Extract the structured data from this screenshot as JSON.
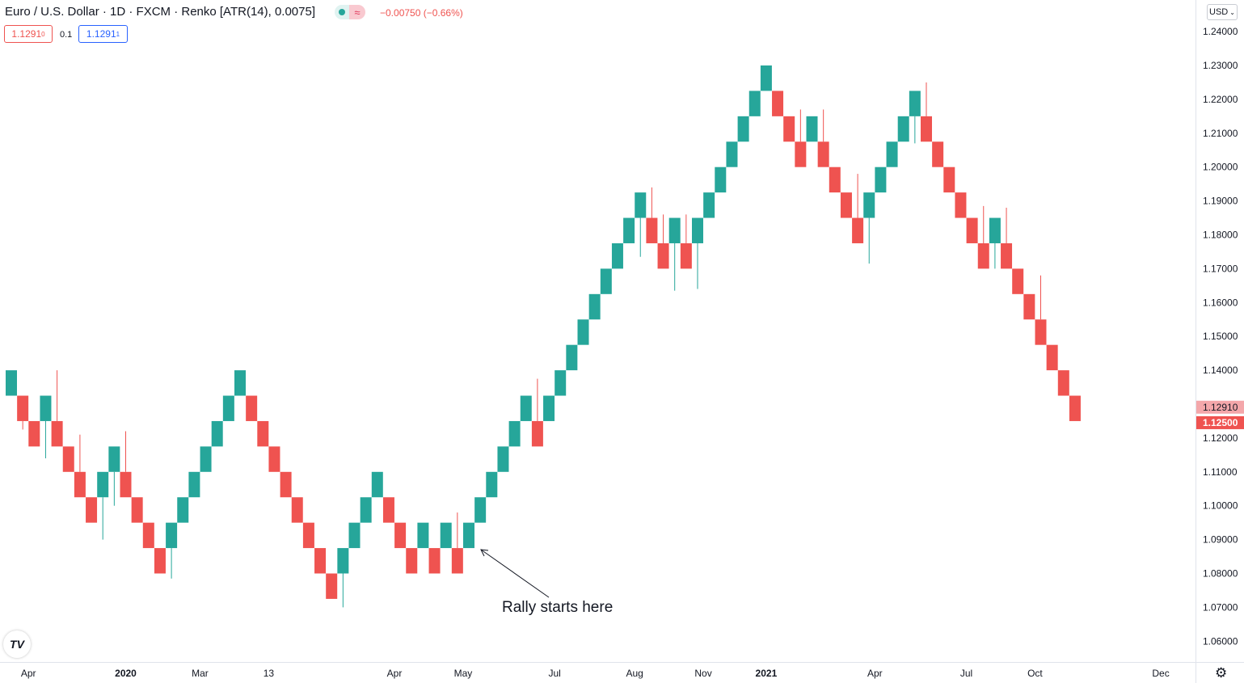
{
  "legend": {
    "title": "Euro / U.S. Dollar · 1D · FXCM · Renko [ATR(14), 0.0075]",
    "change": "−0.00750 (−0.66%)",
    "sell_price": "1.1291",
    "sell_price_sup": "0",
    "spread": "0.1",
    "buy_price": "1.1291",
    "buy_price_sup": "1"
  },
  "currency_label": "USD",
  "logo_text": "TV",
  "annotation": "Rally starts here",
  "colors": {
    "up": "#26a69a",
    "down": "#ef5350",
    "axis_text": "#131722"
  },
  "chart_data": {
    "type": "renko",
    "symbol": "EUR/USD",
    "timeframe": "1D",
    "brick_size": 0.0075,
    "price_axis": {
      "ticks": [
        "1.24000",
        "1.23000",
        "1.22000",
        "1.21000",
        "1.20000",
        "1.19000",
        "1.18000",
        "1.17000",
        "1.16000",
        "1.15000",
        "1.14000",
        "1.12000",
        "1.11000",
        "1.10000",
        "1.09000",
        "1.08000",
        "1.07000",
        "1.06000"
      ]
    },
    "price_labels": [
      {
        "text": "1.12910",
        "value": 1.1291,
        "color": "#f4a7aa"
      },
      {
        "text": "1.12500",
        "value": 1.125,
        "color": "#ef5350"
      }
    ],
    "time_axis": {
      "labels": [
        {
          "text": "Apr",
          "brick": 1.5
        },
        {
          "text": "2020",
          "brick": 10,
          "bold": true
        },
        {
          "text": "Mar",
          "brick": 16.5
        },
        {
          "text": "13",
          "brick": 22.5
        },
        {
          "text": "Apr",
          "brick": 33.5
        },
        {
          "text": "May",
          "brick": 39.5
        },
        {
          "text": "Jul",
          "brick": 47.5
        },
        {
          "text": "Aug",
          "brick": 54.5
        },
        {
          "text": "Nov",
          "brick": 60.5
        },
        {
          "text": "2021",
          "brick": 66,
          "bold": true
        },
        {
          "text": "Apr",
          "brick": 75.5
        },
        {
          "text": "Jul",
          "brick": 83.5
        },
        {
          "text": "Oct",
          "brick": 89.5
        },
        {
          "text": "Dec",
          "brick": 100.5
        }
      ]
    },
    "bricks": [
      {
        "dir": "up",
        "low": 1.1325,
        "high": 1.14
      },
      {
        "dir": "down",
        "low": 1.125,
        "high": 1.1325,
        "wick": 1.1225
      },
      {
        "dir": "down",
        "low": 1.1175,
        "high": 1.125
      },
      {
        "dir": "up",
        "low": 1.125,
        "high": 1.1325,
        "wick": 1.114
      },
      {
        "dir": "down",
        "low": 1.1175,
        "high": 1.125,
        "wick": 1.14
      },
      {
        "dir": "down",
        "low": 1.11,
        "high": 1.1175
      },
      {
        "dir": "down",
        "low": 1.1025,
        "high": 1.11,
        "wick": 1.121
      },
      {
        "dir": "down",
        "low": 1.095,
        "high": 1.1025
      },
      {
        "dir": "up",
        "low": 1.1025,
        "high": 1.11,
        "wick": 1.09
      },
      {
        "dir": "up",
        "low": 1.11,
        "high": 1.1175,
        "wick": 1.1
      },
      {
        "dir": "down",
        "low": 1.1025,
        "high": 1.11,
        "wick": 1.122
      },
      {
        "dir": "down",
        "low": 1.095,
        "high": 1.1025
      },
      {
        "dir": "down",
        "low": 1.0875,
        "high": 1.095
      },
      {
        "dir": "down",
        "low": 1.08,
        "high": 1.0875
      },
      {
        "dir": "up",
        "low": 1.0875,
        "high": 1.095,
        "wick": 1.0785
      },
      {
        "dir": "up",
        "low": 1.095,
        "high": 1.1025
      },
      {
        "dir": "up",
        "low": 1.1025,
        "high": 1.11
      },
      {
        "dir": "up",
        "low": 1.11,
        "high": 1.1175
      },
      {
        "dir": "up",
        "low": 1.1175,
        "high": 1.125
      },
      {
        "dir": "up",
        "low": 1.125,
        "high": 1.1325
      },
      {
        "dir": "up",
        "low": 1.1325,
        "high": 1.14
      },
      {
        "dir": "down",
        "low": 1.125,
        "high": 1.1325
      },
      {
        "dir": "down",
        "low": 1.1175,
        "high": 1.125
      },
      {
        "dir": "down",
        "low": 1.11,
        "high": 1.1175
      },
      {
        "dir": "down",
        "low": 1.1025,
        "high": 1.11
      },
      {
        "dir": "down",
        "low": 1.095,
        "high": 1.1025
      },
      {
        "dir": "down",
        "low": 1.0875,
        "high": 1.095
      },
      {
        "dir": "down",
        "low": 1.08,
        "high": 1.0875
      },
      {
        "dir": "down",
        "low": 1.0725,
        "high": 1.08
      },
      {
        "dir": "up",
        "low": 1.08,
        "high": 1.0875,
        "wick": 1.07
      },
      {
        "dir": "up",
        "low": 1.0875,
        "high": 1.095
      },
      {
        "dir": "up",
        "low": 1.095,
        "high": 1.1025
      },
      {
        "dir": "up",
        "low": 1.1025,
        "high": 1.11
      },
      {
        "dir": "down",
        "low": 1.095,
        "high": 1.1025
      },
      {
        "dir": "down",
        "low": 1.0875,
        "high": 1.095
      },
      {
        "dir": "down",
        "low": 1.08,
        "high": 1.0875
      },
      {
        "dir": "up",
        "low": 1.0875,
        "high": 1.095
      },
      {
        "dir": "down",
        "low": 1.08,
        "high": 1.0875
      },
      {
        "dir": "up",
        "low": 1.0875,
        "high": 1.095
      },
      {
        "dir": "down",
        "low": 1.08,
        "high": 1.0875,
        "wick": 1.098
      },
      {
        "dir": "up",
        "low": 1.0875,
        "high": 1.095
      },
      {
        "dir": "up",
        "low": 1.095,
        "high": 1.1025
      },
      {
        "dir": "up",
        "low": 1.1025,
        "high": 1.11
      },
      {
        "dir": "up",
        "low": 1.11,
        "high": 1.1175
      },
      {
        "dir": "up",
        "low": 1.1175,
        "high": 1.125
      },
      {
        "dir": "up",
        "low": 1.125,
        "high": 1.1325
      },
      {
        "dir": "down",
        "low": 1.1175,
        "high": 1.125,
        "wick": 1.1375
      },
      {
        "dir": "up",
        "low": 1.125,
        "high": 1.1325
      },
      {
        "dir": "up",
        "low": 1.1325,
        "high": 1.14
      },
      {
        "dir": "up",
        "low": 1.14,
        "high": 1.1475
      },
      {
        "dir": "up",
        "low": 1.1475,
        "high": 1.155
      },
      {
        "dir": "up",
        "low": 1.155,
        "high": 1.1625
      },
      {
        "dir": "up",
        "low": 1.1625,
        "high": 1.17
      },
      {
        "dir": "up",
        "low": 1.17,
        "high": 1.1775
      },
      {
        "dir": "up",
        "low": 1.1775,
        "high": 1.185
      },
      {
        "dir": "up",
        "low": 1.185,
        "high": 1.1925,
        "wick": 1.1735
      },
      {
        "dir": "down",
        "low": 1.1775,
        "high": 1.185,
        "wick": 1.194
      },
      {
        "dir": "down",
        "low": 1.17,
        "high": 1.1775,
        "wick": 1.186
      },
      {
        "dir": "up",
        "low": 1.1775,
        "high": 1.185,
        "wick": 1.1635
      },
      {
        "dir": "down",
        "low": 1.17,
        "high": 1.1775,
        "wick": 1.186
      },
      {
        "dir": "up",
        "low": 1.1775,
        "high": 1.185,
        "wick": 1.164
      },
      {
        "dir": "up",
        "low": 1.185,
        "high": 1.1925
      },
      {
        "dir": "up",
        "low": 1.1925,
        "high": 1.2
      },
      {
        "dir": "up",
        "low": 1.2,
        "high": 1.2075
      },
      {
        "dir": "up",
        "low": 1.2075,
        "high": 1.215
      },
      {
        "dir": "up",
        "low": 1.215,
        "high": 1.2225
      },
      {
        "dir": "up",
        "low": 1.2225,
        "high": 1.23
      },
      {
        "dir": "down",
        "low": 1.215,
        "high": 1.2225
      },
      {
        "dir": "down",
        "low": 1.2075,
        "high": 1.215
      },
      {
        "dir": "down",
        "low": 1.2,
        "high": 1.2075,
        "wick": 1.217
      },
      {
        "dir": "up",
        "low": 1.2075,
        "high": 1.215
      },
      {
        "dir": "down",
        "low": 1.2,
        "high": 1.2075,
        "wick": 1.217
      },
      {
        "dir": "down",
        "low": 1.1925,
        "high": 1.2
      },
      {
        "dir": "down",
        "low": 1.185,
        "high": 1.1925
      },
      {
        "dir": "down",
        "low": 1.1775,
        "high": 1.185,
        "wick": 1.198
      },
      {
        "dir": "up",
        "low": 1.185,
        "high": 1.1925,
        "wick": 1.1715
      },
      {
        "dir": "up",
        "low": 1.1925,
        "high": 1.2
      },
      {
        "dir": "up",
        "low": 1.2,
        "high": 1.2075
      },
      {
        "dir": "up",
        "low": 1.2075,
        "high": 1.215
      },
      {
        "dir": "up",
        "low": 1.215,
        "high": 1.2225,
        "wick": 1.207
      },
      {
        "dir": "down",
        "low": 1.2075,
        "high": 1.215,
        "wick": 1.225
      },
      {
        "dir": "down",
        "low": 1.2,
        "high": 1.2075
      },
      {
        "dir": "down",
        "low": 1.1925,
        "high": 1.2
      },
      {
        "dir": "down",
        "low": 1.185,
        "high": 1.1925
      },
      {
        "dir": "down",
        "low": 1.1775,
        "high": 1.185
      },
      {
        "dir": "down",
        "low": 1.17,
        "high": 1.1775,
        "wick": 1.1885
      },
      {
        "dir": "up",
        "low": 1.1775,
        "high": 1.185,
        "wick": 1.17
      },
      {
        "dir": "down",
        "low": 1.17,
        "high": 1.1775,
        "wick": 1.188
      },
      {
        "dir": "down",
        "low": 1.1625,
        "high": 1.17
      },
      {
        "dir": "down",
        "low": 1.155,
        "high": 1.1625
      },
      {
        "dir": "down",
        "low": 1.1475,
        "high": 1.155,
        "wick": 1.168
      },
      {
        "dir": "down",
        "low": 1.14,
        "high": 1.1475
      },
      {
        "dir": "down",
        "low": 1.1325,
        "high": 1.14
      },
      {
        "dir": "down",
        "low": 1.125,
        "high": 1.1325
      }
    ]
  }
}
